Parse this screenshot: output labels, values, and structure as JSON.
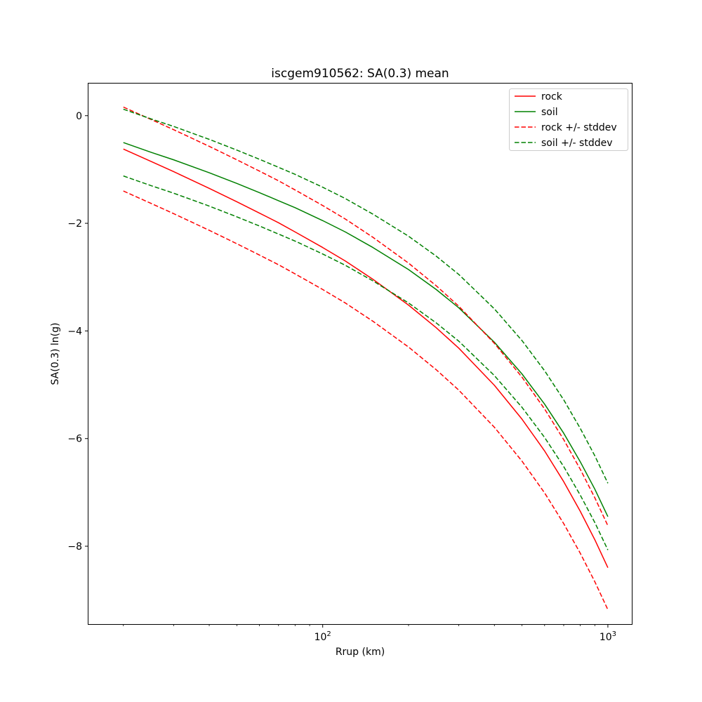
{
  "figure": {
    "title": "iscgem910562: SA(0.3) mean",
    "xlabel": "Rrup (km)",
    "ylabel": "SA(0.3) ln(g)"
  },
  "colors": {
    "rock": "#ff0000",
    "soil": "#008000",
    "spine": "#000000",
    "legend_edge": "#cccccc",
    "background": "#ffffff"
  },
  "axis": {
    "x_scale": "log",
    "xlim": [
      15,
      1220
    ],
    "ylim": [
      -9.46,
      0.61
    ],
    "x_ticks": [
      {
        "value": 100,
        "base": "10",
        "exponent": "2"
      },
      {
        "value": 1000,
        "base": "10",
        "exponent": "3"
      }
    ],
    "x_minor_ticks": [
      20,
      30,
      40,
      50,
      60,
      70,
      80,
      90,
      200,
      300,
      400,
      500,
      600,
      700,
      800,
      900
    ],
    "y_ticks": [
      {
        "value": 0,
        "label": "0"
      },
      {
        "value": -2,
        "label": "−2"
      },
      {
        "value": -4,
        "label": "−4"
      },
      {
        "value": -6,
        "label": "−6"
      },
      {
        "value": -8,
        "label": "−8"
      }
    ]
  },
  "legend": {
    "position": "upper right",
    "entries": [
      {
        "label": "rock",
        "color": "#ff0000",
        "style": "solid"
      },
      {
        "label": "soil",
        "color": "#008000",
        "style": "solid"
      },
      {
        "label": "rock +/- stddev",
        "color": "#ff0000",
        "style": "dashed"
      },
      {
        "label": "soil +/- stddev",
        "color": "#008000",
        "style": "dashed"
      }
    ]
  },
  "chart_data": {
    "type": "line",
    "title": "iscgem910562: SA(0.3) mean",
    "xlabel": "Rrup (km)",
    "ylabel": "SA(0.3) ln(g)",
    "x_scale": "log",
    "xlim": [
      15,
      1220
    ],
    "ylim": [
      -9.46,
      0.61
    ],
    "grid": false,
    "legend_position": "upper right",
    "x": [
      20,
      25,
      30,
      40,
      50,
      60,
      70,
      80,
      100,
      120,
      150,
      200,
      250,
      300,
      400,
      500,
      600,
      700,
      800,
      900,
      1000
    ],
    "series": [
      {
        "name": "rock",
        "style": "solid",
        "color": "#ff0000",
        "values": [
          -0.62,
          -0.85,
          -1.04,
          -1.35,
          -1.6,
          -1.81,
          -1.99,
          -2.16,
          -2.45,
          -2.7,
          -3.04,
          -3.52,
          -3.94,
          -4.32,
          -5.01,
          -5.64,
          -6.23,
          -6.8,
          -7.35,
          -7.88,
          -8.4
        ]
      },
      {
        "name": "soil",
        "style": "solid",
        "color": "#008000",
        "values": [
          -0.5,
          -0.68,
          -0.82,
          -1.06,
          -1.26,
          -1.43,
          -1.58,
          -1.71,
          -1.95,
          -2.16,
          -2.45,
          -2.86,
          -3.23,
          -3.57,
          -4.21,
          -4.8,
          -5.36,
          -5.9,
          -6.43,
          -6.94,
          -7.45
        ]
      },
      {
        "name": "rock +/- stddev",
        "style": "dashed",
        "color": "#ff0000",
        "base": "rock",
        "stddev": 0.78
      },
      {
        "name": "soil +/- stddev",
        "style": "dashed",
        "color": "#008000",
        "base": "soil",
        "stddev": 0.62
      }
    ]
  }
}
